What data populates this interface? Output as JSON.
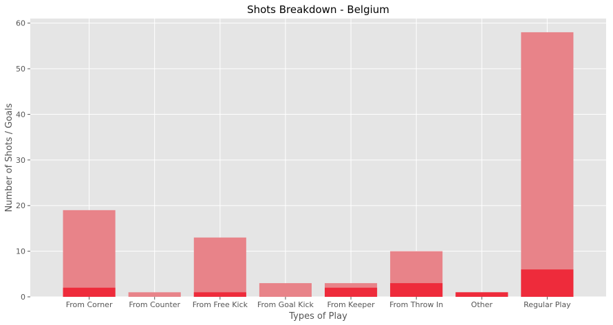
{
  "chart_data": {
    "type": "bar",
    "title": "Shots Breakdown - Belgium",
    "xlabel": "Types of Play",
    "ylabel": "Number of Shots / Goals",
    "categories": [
      "From Corner",
      "From Counter",
      "From Free Kick",
      "From Goal Kick",
      "From Keeper",
      "From Throw In",
      "Other",
      "Regular Play"
    ],
    "series": [
      {
        "values": [
          19,
          1,
          13,
          3,
          3,
          10,
          1,
          58
        ],
        "color": "#e88389"
      },
      {
        "values": [
          2,
          0,
          1,
          0,
          2,
          3,
          1,
          6
        ],
        "color": "#ee2b3b"
      }
    ],
    "yticks": [
      0,
      10,
      20,
      30,
      40,
      50,
      60
    ],
    "ylim": [
      0,
      61
    ],
    "grid": true,
    "background": "#e5e5e5"
  }
}
